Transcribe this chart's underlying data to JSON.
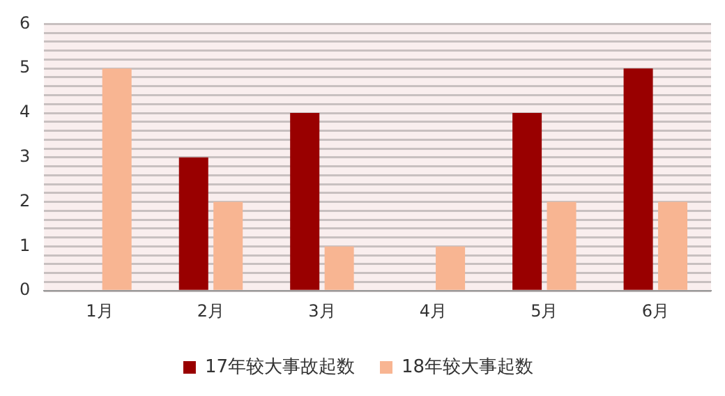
{
  "chart_data": {
    "type": "bar",
    "categories": [
      "1月",
      "2月",
      "3月",
      "4月",
      "5月",
      "6月"
    ],
    "series": [
      {
        "name": "17年较大事故起数",
        "color": "#990000",
        "values": [
          0,
          3,
          4,
          0,
          4,
          5
        ]
      },
      {
        "name": "18年较大事起数",
        "color": "#f8b592",
        "values": [
          5,
          2,
          1,
          1,
          2,
          2
        ]
      }
    ],
    "ylim": [
      0,
      6
    ],
    "yticks": [
      0,
      {
        "value": 0.2,
        "label": null
      },
      {
        "value": 0.4,
        "label": null
      },
      {
        "value": 0.6,
        "label": null
      },
      {
        "value": 0.8,
        "label": null
      },
      1,
      {
        "value": 1.2,
        "label": null
      },
      {
        "value": 1.4,
        "label": null
      },
      {
        "value": 1.6,
        "label": null
      },
      {
        "value": 1.8,
        "label": null
      },
      2,
      {
        "value": 2.2,
        "label": null
      },
      {
        "value": 2.4,
        "label": null
      },
      {
        "value": 2.6,
        "label": null
      },
      {
        "value": 2.8,
        "label": null
      },
      3,
      {
        "value": 3.2,
        "label": null
      },
      {
        "value": 3.4,
        "label": null
      },
      {
        "value": 3.6,
        "label": null
      },
      {
        "value": 3.8,
        "label": null
      },
      4,
      {
        "value": 4.2,
        "label": null
      },
      {
        "value": 4.4,
        "label": null
      },
      {
        "value": 4.6,
        "label": null
      },
      {
        "value": 4.8,
        "label": null
      },
      5,
      {
        "value": 5.2,
        "label": null
      },
      {
        "value": 5.4,
        "label": null
      },
      {
        "value": 5.6,
        "label": null
      },
      {
        "value": 5.8,
        "label": null
      },
      6
    ],
    "grid": "y",
    "legend": "bottom"
  }
}
